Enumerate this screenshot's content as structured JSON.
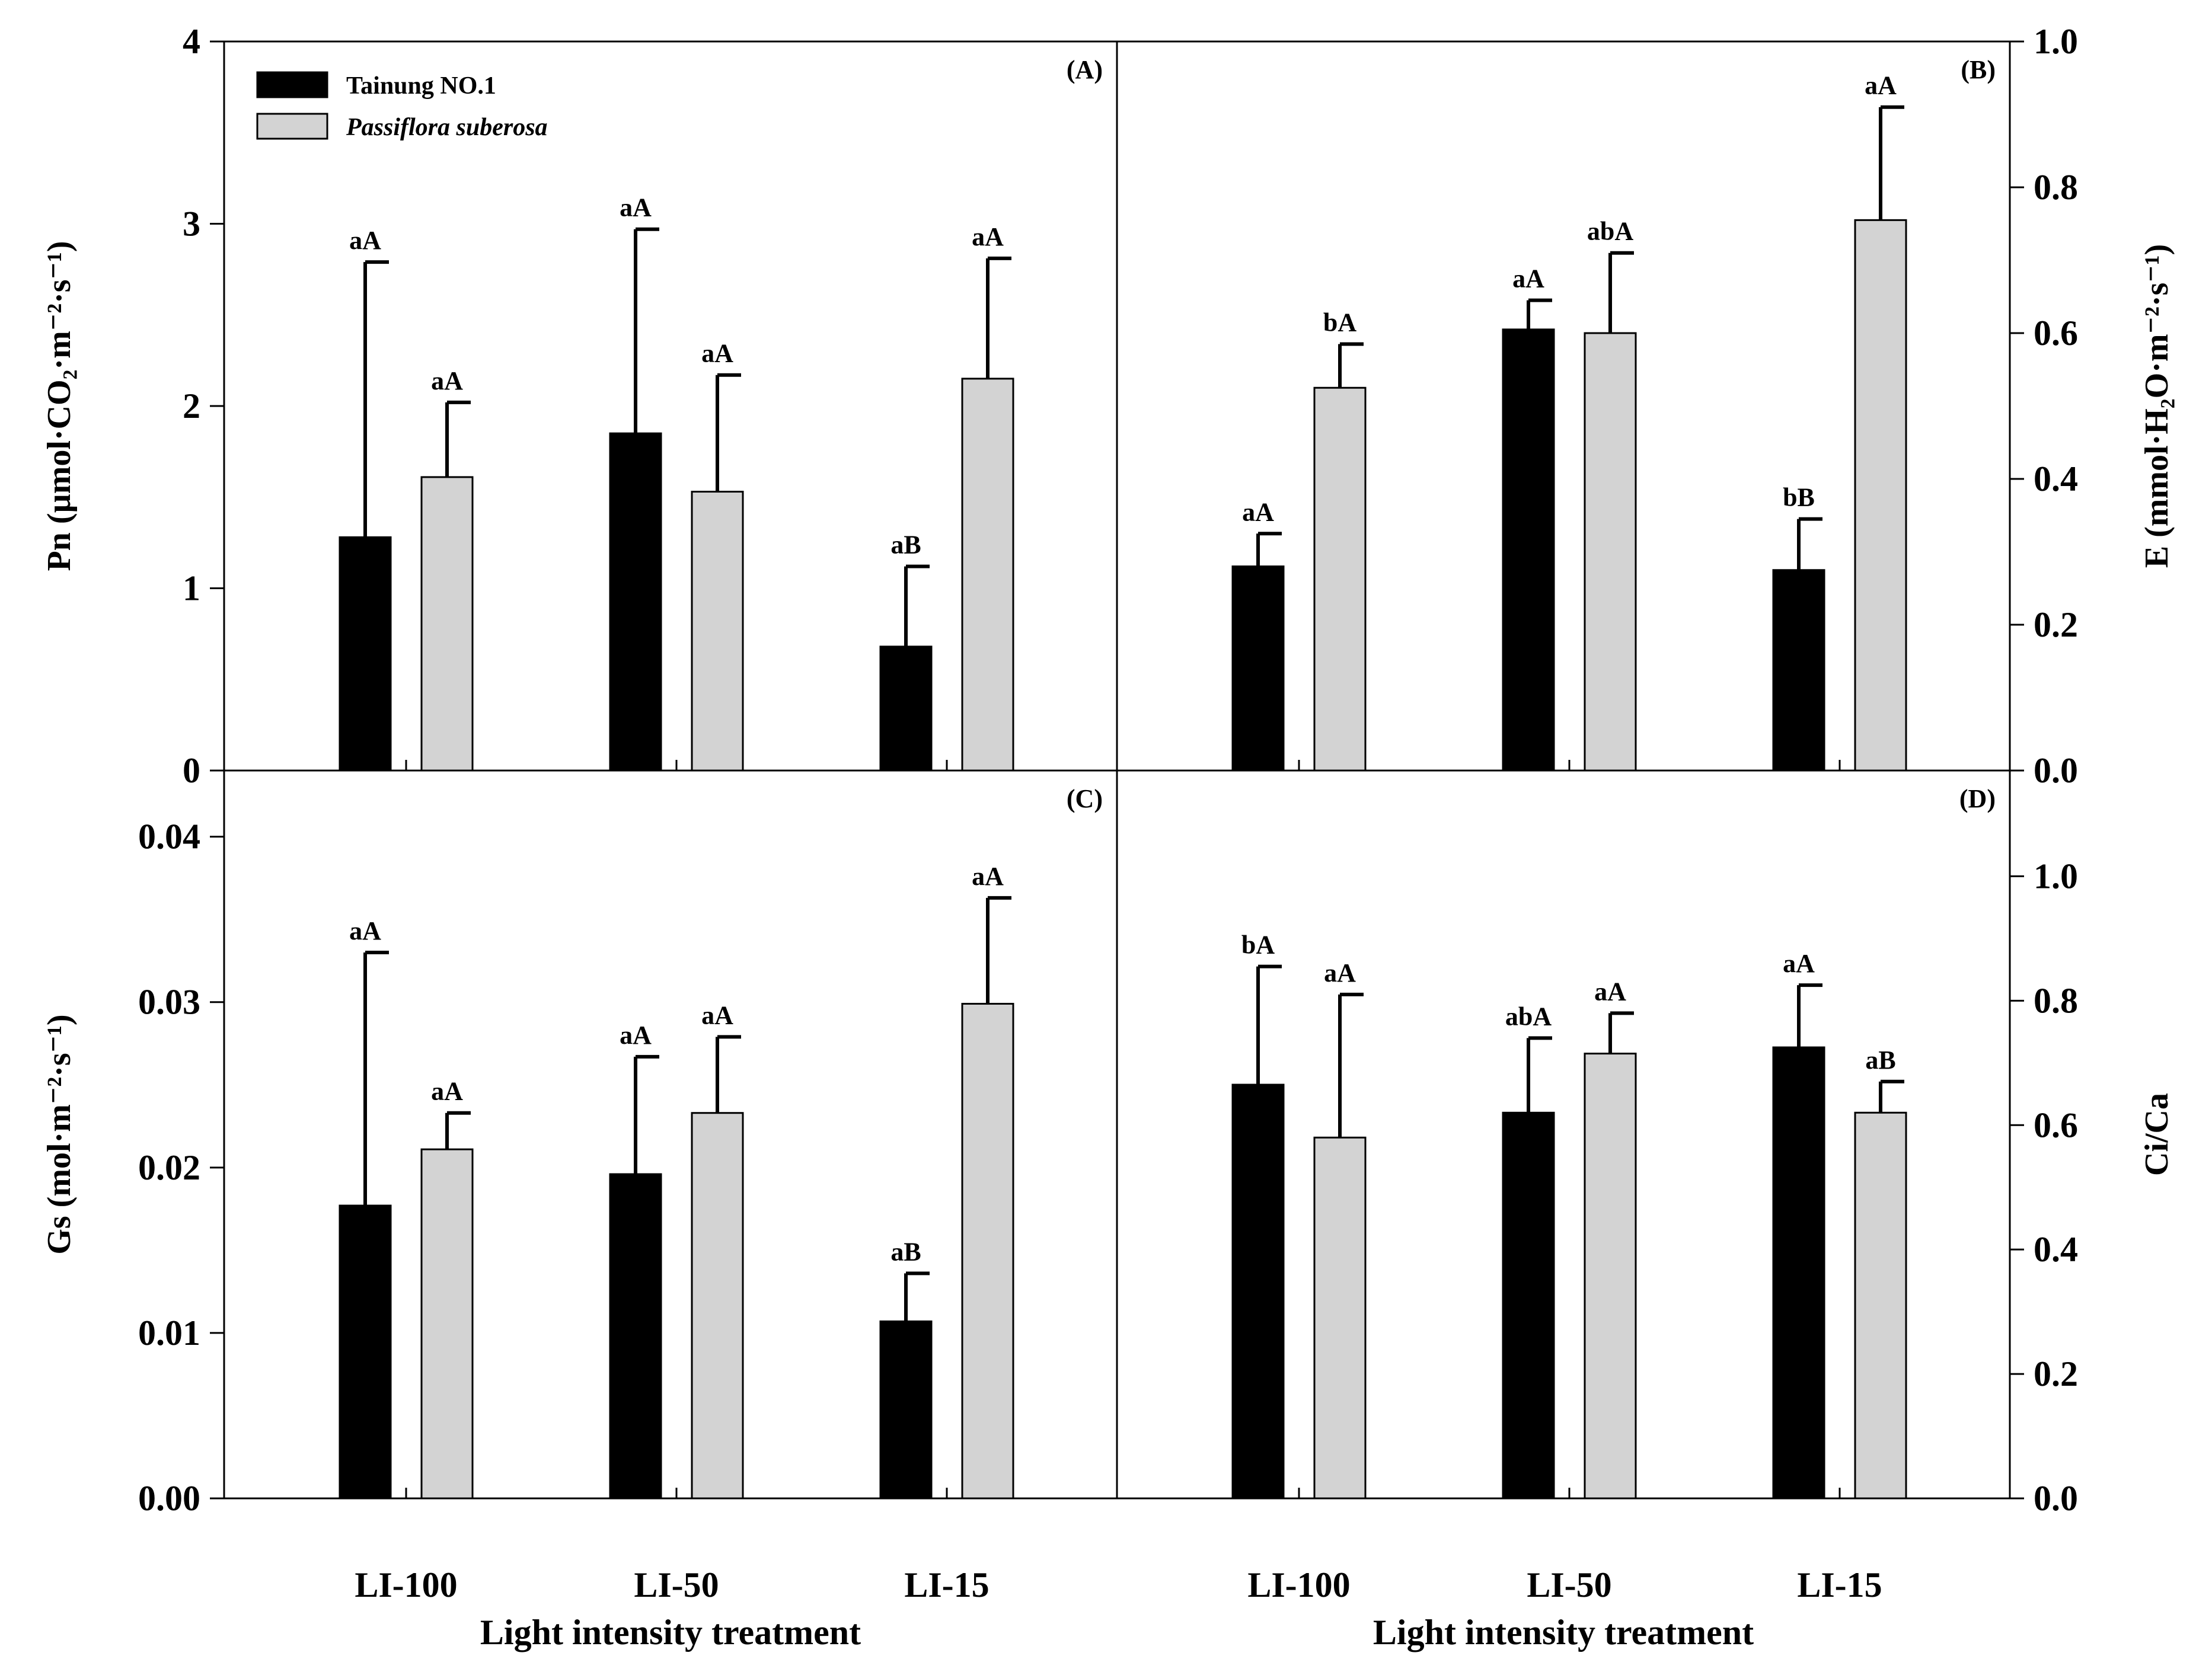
{
  "chart_data": [
    {
      "panel": "(A)",
      "type": "bar",
      "categories": [
        "LI-100",
        "LI-50",
        "LI-15"
      ],
      "series": [
        {
          "name": "Tainung NO.1",
          "color": "#000000",
          "values": [
            1.28,
            1.85,
            0.68
          ],
          "errors": [
            1.51,
            1.12,
            0.44
          ],
          "labels": [
            "aA",
            "aA",
            "aB"
          ]
        },
        {
          "name": "Passiflora suberosa",
          "color": "#d3d3d3",
          "values": [
            1.61,
            1.53,
            2.15
          ],
          "errors": [
            0.41,
            0.64,
            0.66
          ],
          "labels": [
            "aA",
            "aA",
            "aA"
          ]
        }
      ],
      "ylim": [
        0,
        4
      ],
      "yticks": [
        "0",
        "1",
        "2",
        "3",
        "4"
      ],
      "ylabel": "Pn (µmol·CO₂·m⁻²·s⁻¹)",
      "xlabel": ""
    },
    {
      "panel": "(B)",
      "type": "bar",
      "categories": [
        "LI-100",
        "LI-50",
        "LI-15"
      ],
      "series": [
        {
          "name": "Tainung NO.1",
          "color": "#000000",
          "values": [
            0.28,
            0.605,
            0.275
          ],
          "errors": [
            0.045,
            0.04,
            0.07
          ],
          "labels": [
            "aA",
            "aA",
            "bB"
          ]
        },
        {
          "name": "Passiflora suberosa",
          "color": "#d3d3d3",
          "values": [
            0.525,
            0.6,
            0.755
          ],
          "errors": [
            0.06,
            0.11,
            0.155
          ],
          "labels": [
            "bA",
            "abA",
            "aA"
          ]
        }
      ],
      "ylim": [
        0,
        1.0
      ],
      "yticks": [
        "0.0",
        "0.2",
        "0.4",
        "0.6",
        "0.8",
        "1.0"
      ],
      "ylabel": "E (mmol·H₂O·m⁻²·s⁻¹)",
      "xlabel": ""
    },
    {
      "panel": "(C)",
      "type": "bar",
      "categories": [
        "LI-100",
        "LI-50",
        "LI-15"
      ],
      "series": [
        {
          "name": "Tainung NO.1",
          "color": "#000000",
          "values": [
            0.0177,
            0.0196,
            0.0107
          ],
          "errors": [
            0.0153,
            0.0071,
            0.0029
          ],
          "labels": [
            "aA",
            "aA",
            "aB"
          ]
        },
        {
          "name": "Passiflora suberosa",
          "color": "#d3d3d3",
          "values": [
            0.0211,
            0.0233,
            0.0299
          ],
          "errors": [
            0.0022,
            0.0046,
            0.0064
          ],
          "labels": [
            "aA",
            "aA",
            "aA"
          ]
        }
      ],
      "ylim": [
        0,
        0.044
      ],
      "yticks": [
        "0.00",
        "0.01",
        "0.02",
        "0.03",
        "0.04"
      ],
      "ylabel": "Gs (mol·m⁻²·s⁻¹)",
      "xlabel": "Light intensity treatment"
    },
    {
      "panel": "(D)",
      "type": "bar",
      "categories": [
        "LI-100",
        "LI-50",
        "LI-15"
      ],
      "series": [
        {
          "name": "Tainung NO.1",
          "color": "#000000",
          "values": [
            0.665,
            0.62,
            0.725
          ],
          "errors": [
            0.19,
            0.12,
            0.1
          ],
          "labels": [
            "bA",
            "abA",
            "aA"
          ]
        },
        {
          "name": "Passiflora suberosa",
          "color": "#d3d3d3",
          "values": [
            0.58,
            0.715,
            0.62
          ],
          "errors": [
            0.23,
            0.065,
            0.05
          ],
          "labels": [
            "aA",
            "aA",
            "aB"
          ]
        }
      ],
      "ylim": [
        0,
        1.17
      ],
      "yticks": [
        "0.0",
        "0.2",
        "0.4",
        "0.6",
        "0.8",
        "1.0"
      ],
      "ylabel": "Ci/Ca",
      "xlabel": "Light intensity treatment"
    }
  ],
  "legend": {
    "items": [
      {
        "label": "Tainung NO.1",
        "color": "#000000",
        "italic": false
      },
      {
        "label": "Passiflora suberosa",
        "color": "#d3d3d3",
        "italic": true
      }
    ]
  }
}
